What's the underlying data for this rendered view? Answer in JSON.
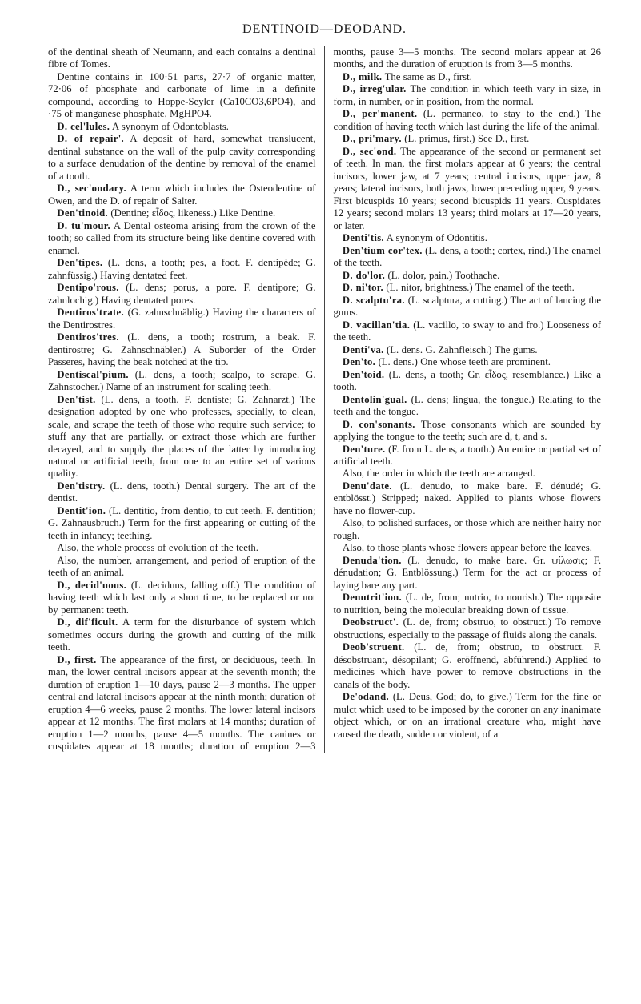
{
  "running_head": "DENTINOID—DEODAND.",
  "entries": [
    {
      "cont": true,
      "text": "of the dentinal sheath of Neumann, and each contains a dentinal fibre of Tomes."
    },
    {
      "cont": true,
      "text": "Dentine contains in 100·51 parts, 27·7 of organic matter, 72·06 of phosphate and carbonate of lime in a definite compound, according to Hoppe-Seyler (Ca10CO3,6PO4), and ·75 of manganese phosphate, MgHPO4."
    },
    {
      "head": "D. cel'lules.",
      "text": " A synonym of Odontoblasts."
    },
    {
      "head": "D. of repair'.",
      "text": " A deposit of hard, somewhat translucent, dentinal substance on the wall of the pulp cavity corresponding to a surface denudation of the dentine by removal of the enamel of a tooth."
    },
    {
      "head": "D., sec'ondary.",
      "text": " A term which includes the Osteodentine of Owen, and the D. of repair of Salter."
    },
    {
      "head": "Den'tinoid.",
      "text": " (Dentine; εἶδος, likeness.) Like Dentine."
    },
    {
      "head": "D. tu'mour.",
      "text": " A Dental osteoma arising from the crown of the tooth; so called from its structure being like dentine covered with enamel."
    },
    {
      "head": "Den'tipes.",
      "text": " (L. dens, a tooth; pes, a foot. F. dentipède; G. zahnfüssig.) Having dentated feet."
    },
    {
      "head": "Dentipo'rous.",
      "text": " (L. dens; porus, a pore. F. dentipore; G. zahnlochig.) Having dentated pores."
    },
    {
      "head": "Dentiros'trate.",
      "text": " (G. zahnschnäblig.) Having the characters of the Dentirostres."
    },
    {
      "head": "Dentiros'tres.",
      "text": " (L. dens, a tooth; rostrum, a beak. F. dentirostre; G. Zahnschnäbler.) A Suborder of the Order Passeres, having the beak notched at the tip."
    },
    {
      "head": "Dentiscal'pium.",
      "text": " (L. dens, a tooth; scalpo, to scrape. G. Zahnstocher.) Name of an instrument for scaling teeth."
    },
    {
      "head": "Den'tist.",
      "text": " (L. dens, a tooth. F. dentiste; G. Zahnarzt.) The designation adopted by one who professes, specially, to clean, scale, and scrape the teeth of those who require such service; to stuff any that are partially, or extract those which are further decayed, and to supply the places of the latter by introducing natural or artificial teeth, from one to an entire set of various quality."
    },
    {
      "head": "Den'tistry.",
      "text": " (L. dens, tooth.) Dental surgery. The art of the dentist."
    },
    {
      "head": "Dentit'ion.",
      "text": " (L. dentitio, from dentio, to cut teeth. F. dentition; G. Zahnausbruch.) Term for the first appearing or cutting of the teeth in infancy; teething."
    },
    {
      "cont": true,
      "text": "Also, the whole process of evolution of the teeth."
    },
    {
      "cont": true,
      "text": "Also, the number, arrangement, and period of eruption of the teeth of an animal."
    },
    {
      "head": "D., decid'uous.",
      "text": " (L. deciduus, falling off.) The condition of having teeth which last only a short time, to be replaced or not by permanent teeth."
    },
    {
      "head": "D., dif'ficult.",
      "text": " A term for the disturbance of system which sometimes occurs during the growth and cutting of the milk teeth."
    },
    {
      "head": "D., first.",
      "text": " The appearance of the first, or deciduous, teeth. In man, the lower central incisors appear at the seventh month; the duration of eruption 1—10 days, pause 2—3 months. The upper central and lateral incisors appear at the ninth month; duration of eruption 4—6 weeks, pause 2 months. The lower lateral incisors appear at 12 months. The first molars at 14 months; duration of eruption 1—2 months, pause 4—5 months. The canines or cuspidates appear at 18 months; duration of eruption 2—3 months, pause 3—5 months. The second molars appear at 26 months, and the duration of eruption is from 3—5 months."
    },
    {
      "head": "D., milk.",
      "text": " The same as D., first."
    },
    {
      "head": "D., irreg'ular.",
      "text": " The condition in which teeth vary in size, in form, in number, or in position, from the normal."
    },
    {
      "head": "D., per'manent.",
      "text": " (L. permaneo, to stay to the end.) The condition of having teeth which last during the life of the animal."
    },
    {
      "head": "D., pri'mary.",
      "text": " (L. primus, first.) See D., first."
    },
    {
      "head": "D., sec'ond.",
      "text": " The appearance of the second or permanent set of teeth. In man, the first molars appear at 6 years; the central incisors, lower jaw, at 7 years; central incisors, upper jaw, 8 years; lateral incisors, both jaws, lower preceding upper, 9 years. First bicuspids 10 years; second bicuspids 11 years. Cuspidates 12 years; second molars 13 years; third molars at 17—20 years, or later."
    },
    {
      "head": "Denti'tis.",
      "text": " A synonym of Odontitis."
    },
    {
      "head": "Den'tium cor'tex.",
      "text": " (L. dens, a tooth; cortex, rind.) The enamel of the teeth."
    },
    {
      "head": "D. do'lor.",
      "text": " (L. dolor, pain.) Toothache."
    },
    {
      "head": "D. ni'tor.",
      "text": " (L. nitor, brightness.) The enamel of the teeth."
    },
    {
      "head": "D. scalptu'ra.",
      "text": " (L. scalptura, a cutting.) The act of lancing the gums."
    },
    {
      "head": "D. vacillan'tia.",
      "text": " (L. vacillo, to sway to and fro.) Looseness of the teeth."
    },
    {
      "head": "Denti'va.",
      "text": " (L. dens. G. Zahnfleisch.) The gums."
    },
    {
      "head": "Den'to.",
      "text": " (L. dens.) One whose teeth are prominent."
    },
    {
      "head": "Den'toid.",
      "text": " (L. dens, a tooth; Gr. εἶδος, resemblance.) Like a tooth."
    },
    {
      "head": "Dentolin'gual.",
      "text": " (L. dens; lingua, the tongue.) Relating to the teeth and the tongue."
    },
    {
      "head": "D. con'sonants.",
      "text": " Those consonants which are sounded by applying the tongue to the teeth; such are d, t, and s."
    },
    {
      "head": "Den'ture.",
      "text": " (F. from L. dens, a tooth.) An entire or partial set of artificial teeth."
    },
    {
      "cont": true,
      "text": "Also, the order in which the teeth are arranged."
    },
    {
      "head": "Denu'date.",
      "text": " (L. denudo, to make bare. F. dénudé; G. entblösst.) Stripped; naked. Applied to plants whose flowers have no flower-cup."
    },
    {
      "cont": true,
      "text": "Also, to polished surfaces, or those which are neither hairy nor rough."
    },
    {
      "cont": true,
      "text": "Also, to those plants whose flowers appear before the leaves."
    },
    {
      "head": "Denuda'tion.",
      "text": " (L. denudo, to make bare. Gr. ψίλωσις; F. dénudation; G. Entblössung.) Term for the act or process of laying bare any part."
    },
    {
      "head": "Denutrit'ion.",
      "text": " (L. de, from; nutrio, to nourish.) The opposite to nutrition, being the molecular breaking down of tissue."
    },
    {
      "head": "Deobstruct'.",
      "text": " (L. de, from; obstruo, to obstruct.) To remove obstructions, especially to the passage of fluids along the canals."
    },
    {
      "head": "Deob'struent.",
      "text": " (L. de, from; obstruo, to obstruct. F. désobstruant, désopilant; G. eröffnend, abführend.) Applied to medicines which have power to remove obstructions in the canals of the body."
    },
    {
      "head": "De'odand.",
      "text": " (L. Deus, God; do, to give.) Term for the fine or mulct which used to be imposed by the coroner on any inanimate object which, or on an irrational creature who, might have caused the death, sudden or violent, of a"
    }
  ]
}
